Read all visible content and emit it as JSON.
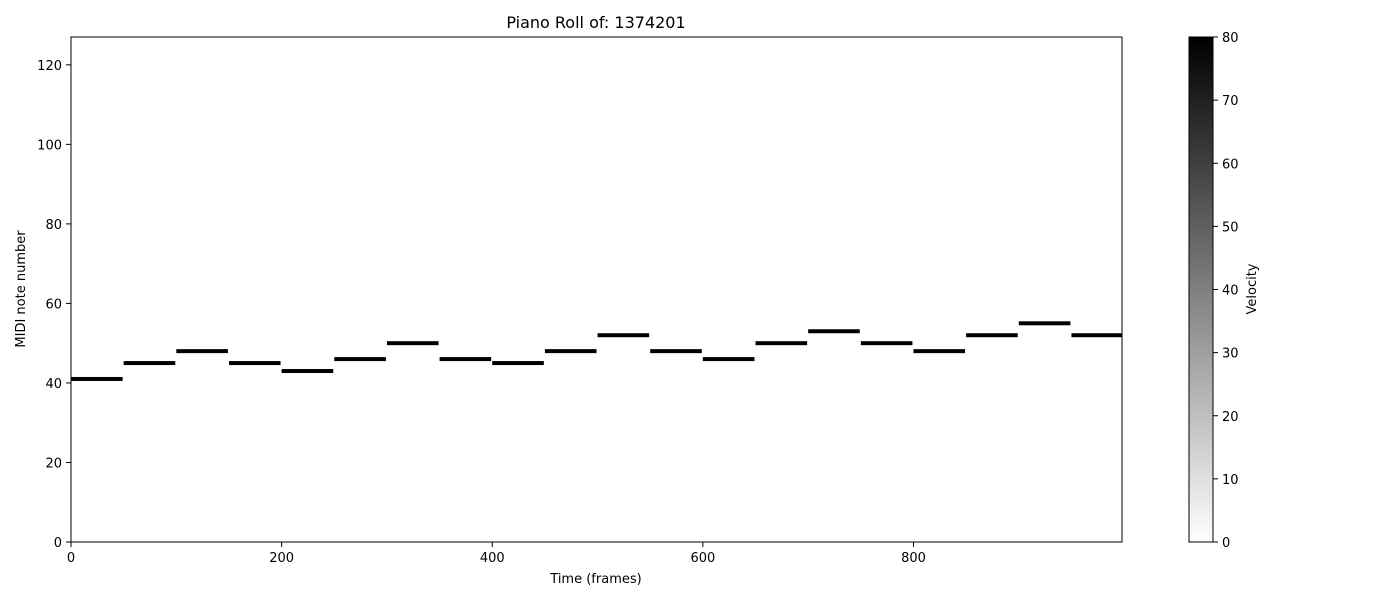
{
  "chart_data": {
    "type": "heatmap",
    "title": "Piano Roll of: 1374201",
    "xlabel": "Time (frames)",
    "ylabel": "MIDI note number",
    "xlim": [
      0,
      998
    ],
    "ylim": [
      0,
      127
    ],
    "x_ticks": [
      0,
      200,
      400,
      600,
      800
    ],
    "y_ticks": [
      0,
      20,
      40,
      60,
      80,
      100,
      120
    ],
    "grid": false,
    "notes": [
      {
        "start": 0,
        "end": 49,
        "pitch": 41,
        "velocity": 80
      },
      {
        "start": 50,
        "end": 99,
        "pitch": 45,
        "velocity": 80
      },
      {
        "start": 100,
        "end": 149,
        "pitch": 48,
        "velocity": 80
      },
      {
        "start": 150,
        "end": 199,
        "pitch": 45,
        "velocity": 80
      },
      {
        "start": 200,
        "end": 249,
        "pitch": 43,
        "velocity": 80
      },
      {
        "start": 250,
        "end": 299,
        "pitch": 46,
        "velocity": 80
      },
      {
        "start": 300,
        "end": 349,
        "pitch": 50,
        "velocity": 80
      },
      {
        "start": 350,
        "end": 399,
        "pitch": 46,
        "velocity": 80
      },
      {
        "start": 400,
        "end": 449,
        "pitch": 45,
        "velocity": 80
      },
      {
        "start": 450,
        "end": 499,
        "pitch": 48,
        "velocity": 80
      },
      {
        "start": 500,
        "end": 549,
        "pitch": 52,
        "velocity": 80
      },
      {
        "start": 550,
        "end": 599,
        "pitch": 48,
        "velocity": 80
      },
      {
        "start": 600,
        "end": 649,
        "pitch": 46,
        "velocity": 80
      },
      {
        "start": 650,
        "end": 699,
        "pitch": 50,
        "velocity": 80
      },
      {
        "start": 700,
        "end": 749,
        "pitch": 53,
        "velocity": 80
      },
      {
        "start": 750,
        "end": 799,
        "pitch": 50,
        "velocity": 80
      },
      {
        "start": 800,
        "end": 849,
        "pitch": 48,
        "velocity": 80
      },
      {
        "start": 850,
        "end": 899,
        "pitch": 52,
        "velocity": 80
      },
      {
        "start": 900,
        "end": 949,
        "pitch": 55,
        "velocity": 80
      },
      {
        "start": 950,
        "end": 998,
        "pitch": 52,
        "velocity": 80
      }
    ],
    "colorbar": {
      "label": "Velocity",
      "range": [
        0,
        80
      ],
      "ticks": [
        0,
        10,
        20,
        30,
        40,
        50,
        60,
        70,
        80
      ],
      "colormap": "gray_r"
    }
  }
}
